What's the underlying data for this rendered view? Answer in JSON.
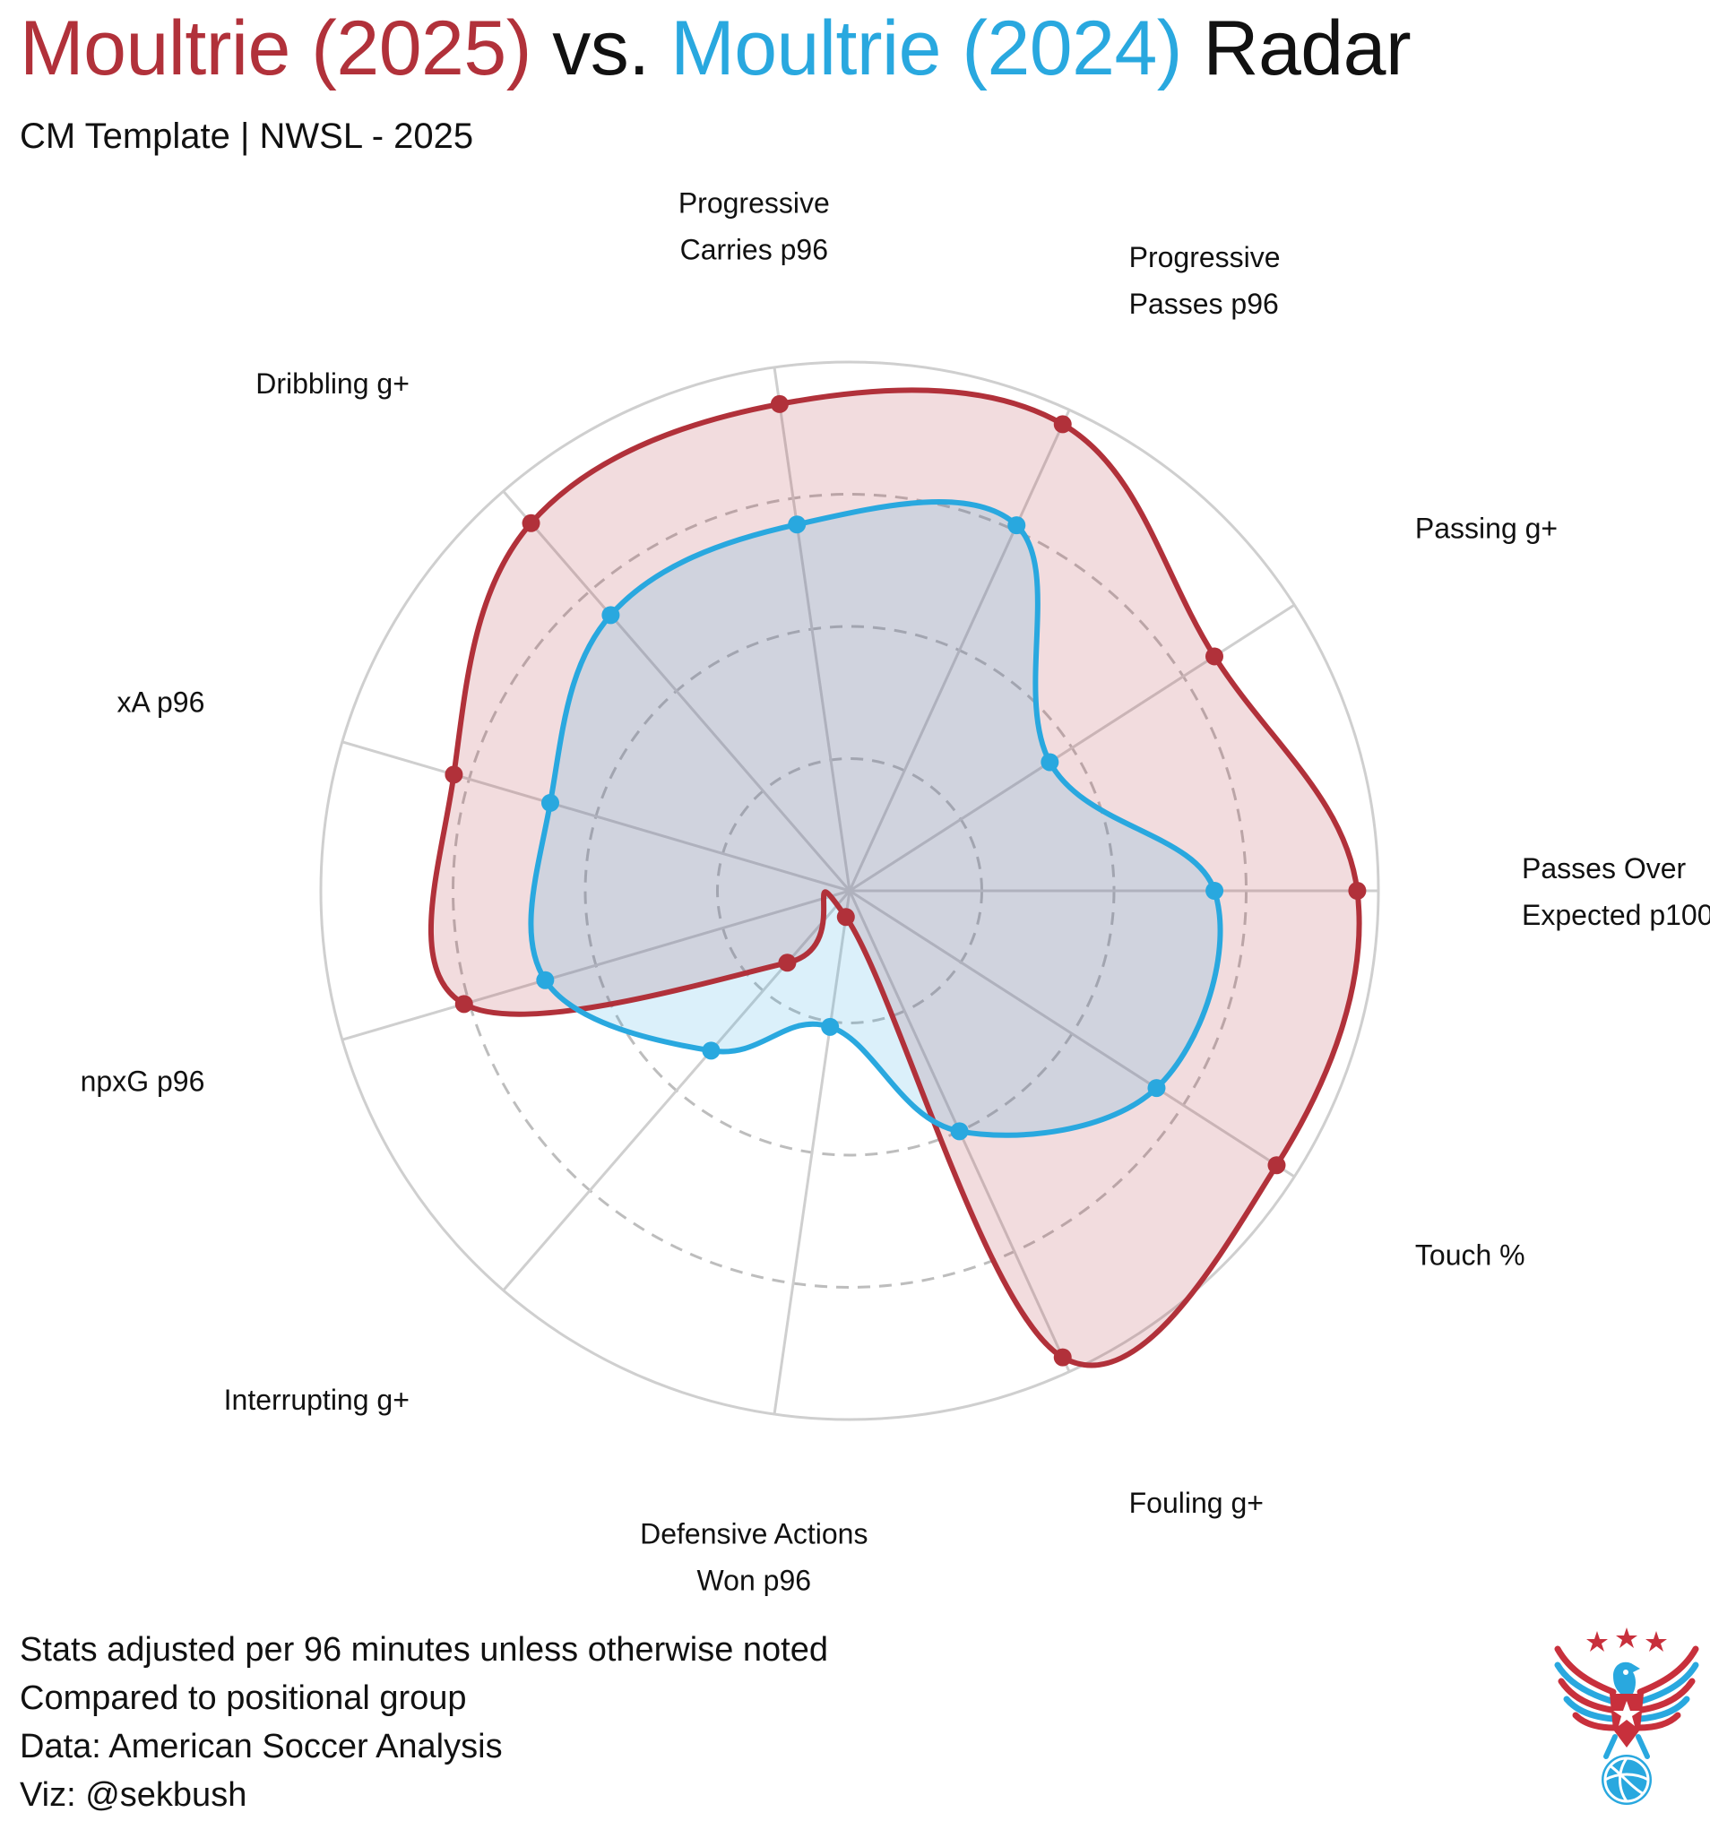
{
  "title": {
    "player_a": "Moultrie (2025)",
    "vs": "vs.",
    "player_b": "Moultrie (2024)",
    "suffix": "Radar"
  },
  "subtitle": "CM Template | NWSL - 2025",
  "footer": {
    "line1": "Stats adjusted per 96 minutes unless otherwise noted",
    "line2": "Compared to positional group",
    "line3": "Data: American Soccer Analysis",
    "line4": "Viz: @sekbush"
  },
  "colors": {
    "player_a": "#b1313a",
    "player_a_fill": "rgba(177,49,58,0.17)",
    "player_b": "#29a8df",
    "player_b_fill": "rgba(41,168,223,0.17)",
    "grid": "#cfcfcf",
    "grid_dashed": "#bdbdbd"
  },
  "logo": {
    "icon": "eagle-soccer-ball-logo"
  },
  "chart_data": {
    "type": "radar",
    "categories": [
      [
        "Passes Over",
        "Expected p100"
      ],
      [
        "Passing g+"
      ],
      [
        "Progressive",
        "Passes p96"
      ],
      [
        "Progressive",
        "Carries p96"
      ],
      [
        "Dribbling g+"
      ],
      [
        "xA p96"
      ],
      [
        "npxG p96"
      ],
      [
        "Interrupting g+"
      ],
      [
        "Defensive Actions",
        "Won p96"
      ],
      [
        "Fouling g+"
      ],
      [
        "Touch %"
      ]
    ],
    "series": [
      {
        "name": "Moultrie (2025)",
        "values": [
          96,
          82,
          97,
          93,
          92,
          78,
          76,
          18,
          5,
          97,
          96
        ]
      },
      {
        "name": "Moultrie (2024)",
        "values": [
          69,
          45,
          76,
          70,
          69,
          59,
          60,
          40,
          26,
          50,
          69
        ]
      }
    ],
    "rlim": [
      0,
      100
    ],
    "rings": [
      25,
      50,
      75,
      100
    ],
    "grid": true,
    "legend": "title"
  }
}
